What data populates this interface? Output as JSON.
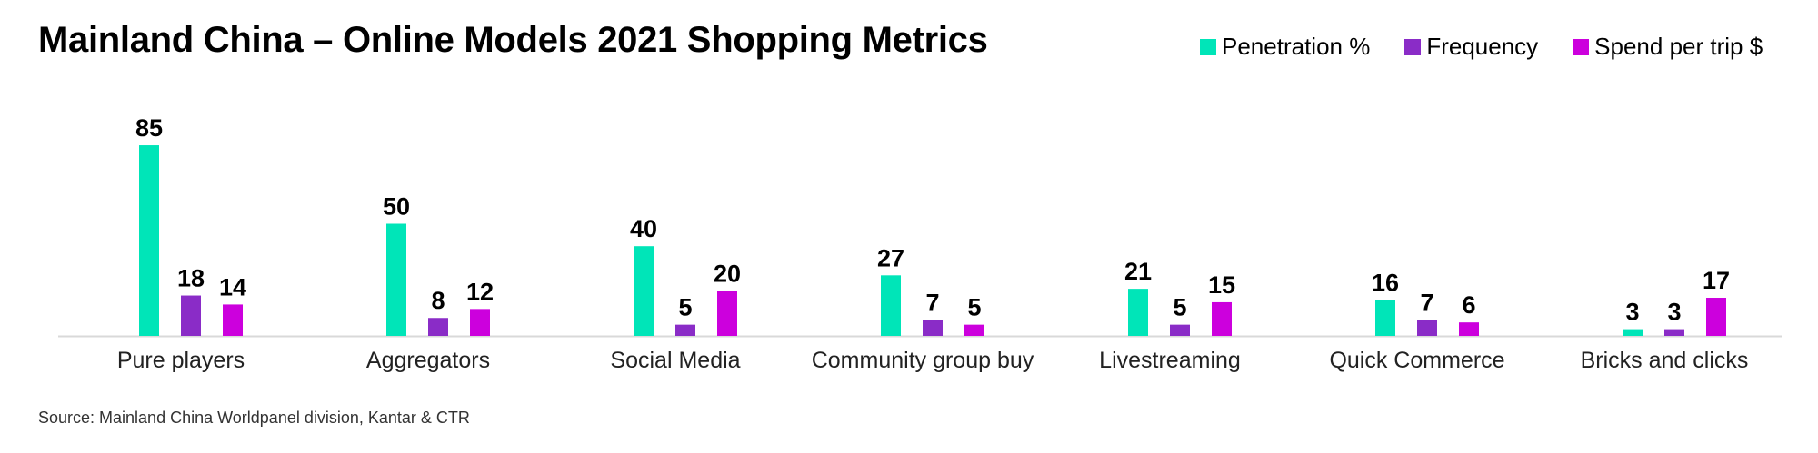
{
  "chart_data": {
    "type": "bar",
    "title": "Mainland China – Online Models 2021 Shopping Metrics",
    "categories": [
      "Pure players",
      "Aggregators",
      "Social Media",
      "Community group buy",
      "Livestreaming",
      "Quick Commerce",
      "Bricks and clicks"
    ],
    "series": [
      {
        "name": "Penetration %",
        "color": "#00e5b8",
        "values": [
          85,
          50,
          40,
          27,
          21,
          16,
          3
        ]
      },
      {
        "name": "Frequency",
        "color": "#8a2cc7",
        "values": [
          18,
          8,
          5,
          7,
          5,
          7,
          3
        ]
      },
      {
        "name": "Spend per trip $",
        "color": "#cc00dd",
        "values": [
          14,
          12,
          20,
          5,
          15,
          6,
          17
        ]
      }
    ],
    "source": "Source: Mainland China Worldpanel division, Kantar & CTR",
    "legend_position": "top-right",
    "grid": false
  }
}
